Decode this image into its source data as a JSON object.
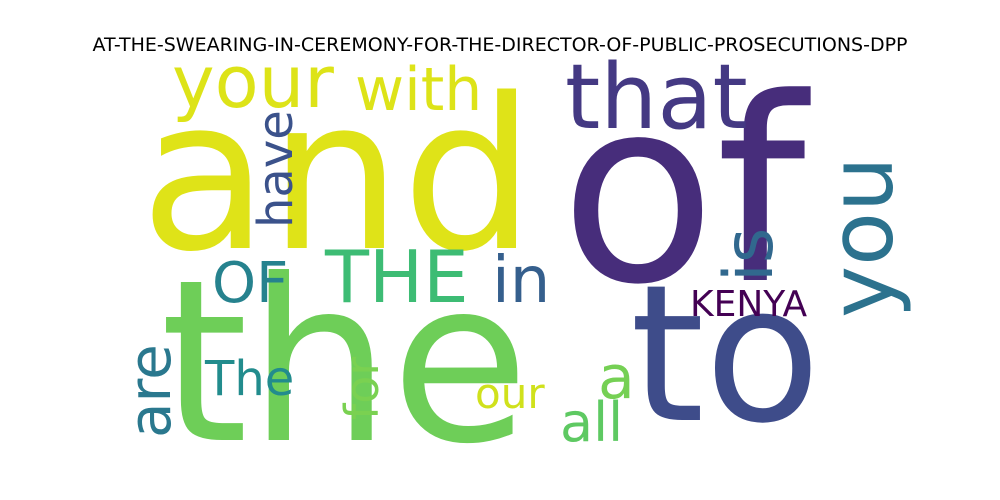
{
  "title": "AT-THE-SWEARING-IN-CEREMONY-FOR-THE-DIRECTOR-OF-PUBLIC-PROSECUTIONS-DPP",
  "words": [
    {
      "text": "and",
      "color": "#dfe318",
      "orientation": "horizontal"
    },
    {
      "text": "of",
      "color": "#472d7b",
      "orientation": "horizontal"
    },
    {
      "text": "the",
      "color": "#6ece58",
      "orientation": "horizontal"
    },
    {
      "text": "to",
      "color": "#3e4c8a",
      "orientation": "horizontal"
    },
    {
      "text": "that",
      "color": "#443983",
      "orientation": "horizontal"
    },
    {
      "text": "your",
      "color": "#dde318",
      "orientation": "horizontal"
    },
    {
      "text": "with",
      "color": "#dde318",
      "orientation": "horizontal"
    },
    {
      "text": "you",
      "color": "#2c728e",
      "orientation": "vertical"
    },
    {
      "text": "is",
      "color": "#31688e",
      "orientation": "vertical"
    },
    {
      "text": "have",
      "color": "#3b528b",
      "orientation": "vertical"
    },
    {
      "text": "THE",
      "color": "#3dbc74",
      "orientation": "horizontal"
    },
    {
      "text": "OF",
      "color": "#26828e",
      "orientation": "horizontal"
    },
    {
      "text": "in",
      "color": "#355f8d",
      "orientation": "horizontal"
    },
    {
      "text": "KENYA",
      "color": "#440154",
      "orientation": "horizontal"
    },
    {
      "text": "are",
      "color": "#2a788e",
      "orientation": "vertical"
    },
    {
      "text": "The",
      "color": "#228c8d",
      "orientation": "horizontal"
    },
    {
      "text": "for",
      "color": "#7ad151",
      "orientation": "vertical"
    },
    {
      "text": "our",
      "color": "#d0e11c",
      "orientation": "horizontal"
    },
    {
      "text": "a",
      "color": "#75d054",
      "orientation": "horizontal"
    },
    {
      "text": "all",
      "color": "#5ec962",
      "orientation": "horizontal"
    }
  ]
}
